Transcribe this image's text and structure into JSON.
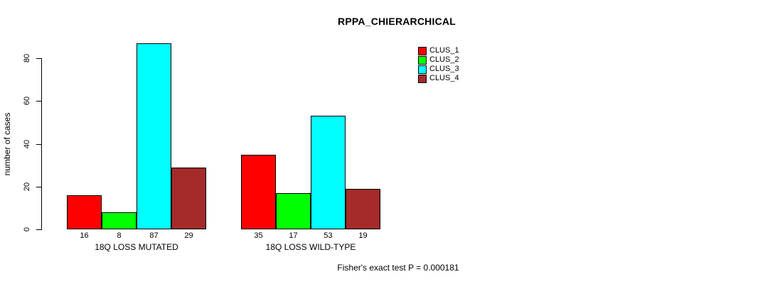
{
  "chart_data": {
    "type": "bar",
    "title": "RPPA_CHIERARCHICAL",
    "ylabel": "number of cases",
    "xlabel": "",
    "categories": [
      "18Q LOSS MUTATED",
      "18Q LOSS WILD-TYPE"
    ],
    "series": [
      {
        "name": "CLUS_1",
        "color": "#FF0000",
        "values": [
          16,
          35
        ]
      },
      {
        "name": "CLUS_2",
        "color": "#00FF00",
        "values": [
          8,
          17
        ]
      },
      {
        "name": "CLUS_3",
        "color": "#00FFFF",
        "values": [
          87,
          53
        ]
      },
      {
        "name": "CLUS_4",
        "color": "#A52A2A",
        "values": [
          29,
          19
        ]
      }
    ],
    "yticks": [
      0,
      20,
      40,
      60,
      80
    ],
    "ylim": [
      0,
      87
    ],
    "grid": false,
    "legend_position": "top-right",
    "bar_value_labels_shown": true,
    "annotation": "Fisher's exact test P = 0.000181"
  }
}
